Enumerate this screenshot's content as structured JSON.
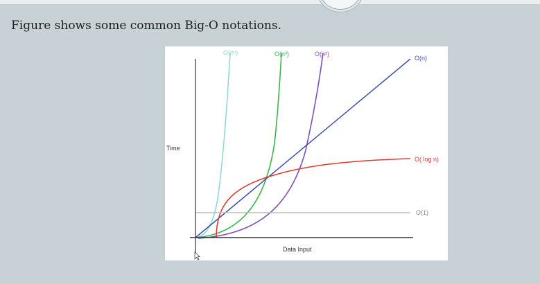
{
  "slide": {
    "caption": "Figure shows some common Big-O notations."
  },
  "chart_data": {
    "type": "line",
    "xlabel": "Data Input",
    "ylabel": "Time",
    "series": [
      {
        "name": "O(n^n)",
        "label": "O(nⁿ)",
        "color": "#8fdad7"
      },
      {
        "name": "O(n^3)",
        "label": "O(n³)",
        "color": "#39b54a"
      },
      {
        "name": "O(n^2)",
        "label": "O(n²)",
        "color": "#7b4fbb"
      },
      {
        "name": "O(n)",
        "label": "O(n)",
        "color": "#3b4fb0"
      },
      {
        "name": "O(log n)",
        "label": "O( log n)",
        "color": "#e0392b"
      },
      {
        "name": "O(1)",
        "label": "O(1)",
        "color": "#bdbdbd"
      }
    ],
    "grid": false
  }
}
